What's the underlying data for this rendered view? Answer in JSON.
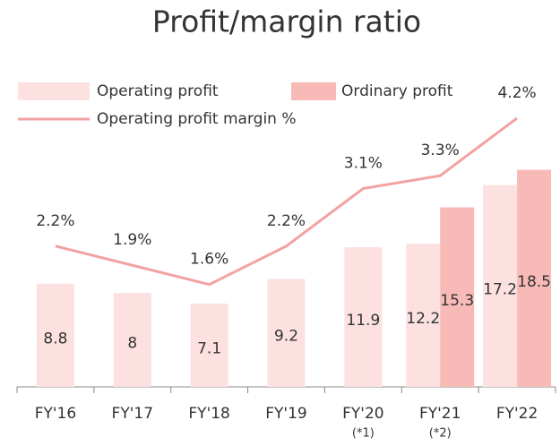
{
  "chart_data": {
    "type": "bar",
    "title": "Profit/margin ratio",
    "categories": [
      "FY'16",
      "FY'17",
      "FY'18",
      "FY'19",
      "FY'20",
      "FY'21",
      "FY'22"
    ],
    "category_notes": [
      null,
      null,
      null,
      null,
      "(*1)",
      "(*2)",
      null
    ],
    "series": [
      {
        "name": "Operating profit",
        "color": "#fce1e0",
        "values": [
          8.8,
          8.0,
          7.1,
          9.2,
          11.9,
          12.2,
          17.2
        ]
      },
      {
        "name": "Ordinary profit",
        "color": "#f8bab6",
        "values": [
          null,
          null,
          null,
          null,
          null,
          15.3,
          18.5
        ]
      },
      {
        "name": "Operating profit margin %",
        "type": "line",
        "axis": "y2",
        "color": "#f2a2a2",
        "values": [
          2.2,
          1.9,
          1.6,
          2.2,
          3.1,
          3.3,
          4.2
        ],
        "value_labels": [
          "2.2%",
          "1.9%",
          "1.6%",
          "2.2%",
          "3.1%",
          "3.3%",
          "4.2%"
        ]
      }
    ],
    "ylim": [
      0,
      30
    ],
    "y2lim": [
      0,
      5.5
    ],
    "legend": "top"
  }
}
